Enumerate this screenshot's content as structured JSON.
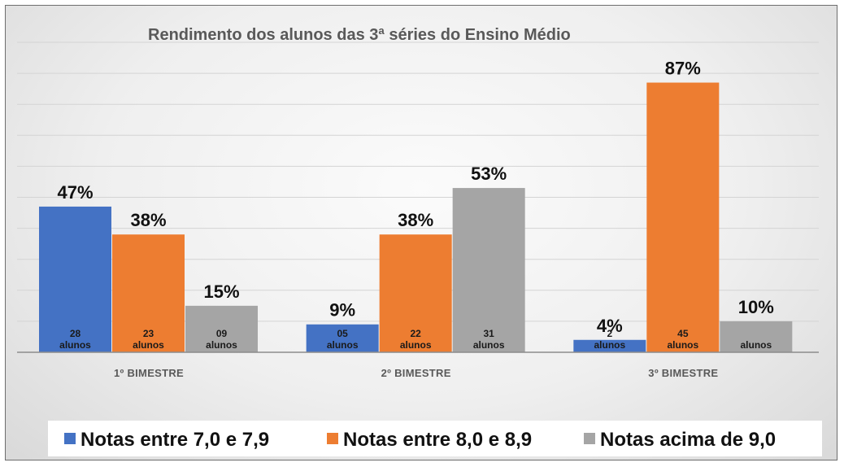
{
  "chart_data": {
    "type": "bar",
    "title": "Rendimento dos alunos das 3ª séries do Ensino Médio",
    "categories": [
      "1º BIMESTRE",
      "2º BIMESTRE",
      "3º BIMESTRE"
    ],
    "series": [
      {
        "name": "Notas entre 7,0 e 7,9",
        "color": "#4472c4",
        "values": [
          47,
          9,
          4
        ],
        "value_labels": [
          "47%",
          "9%",
          "4%"
        ],
        "count_labels": [
          [
            "28",
            "alunos"
          ],
          [
            "05",
            "alunos"
          ],
          [
            "2",
            "alunos"
          ]
        ]
      },
      {
        "name": "Notas entre 8,0 e 8,9",
        "color": "#ed7d31",
        "values": [
          38,
          38,
          87
        ],
        "value_labels": [
          "38%",
          "38%",
          "87%"
        ],
        "count_labels": [
          [
            "23",
            "alunos"
          ],
          [
            "22",
            "alunos"
          ],
          [
            "45",
            "alunos"
          ]
        ]
      },
      {
        "name": "Notas acima de 9,0",
        "color": "#a5a5a5",
        "values": [
          15,
          53,
          10
        ],
        "value_labels": [
          "15%",
          "53%",
          "10%"
        ],
        "count_labels": [
          [
            "09",
            "alunos"
          ],
          [
            "31",
            "alunos"
          ],
          [
            "",
            "alunos"
          ]
        ]
      }
    ],
    "ylim": [
      0,
      100
    ],
    "grid": true,
    "legend": "bottom"
  }
}
